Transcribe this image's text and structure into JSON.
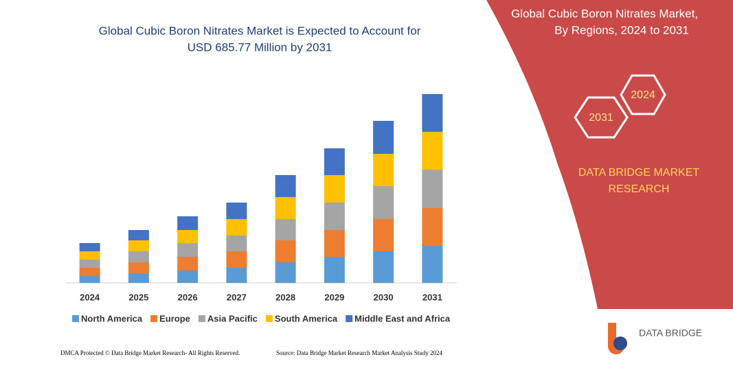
{
  "chart_data": {
    "type": "stacked-bar",
    "title": "Global Cubic Boron Nitrates Market is Expected to Account for",
    "subtitle": "USD 685.77 Million by 2031",
    "categories": [
      "2024",
      "2025",
      "2026",
      "2027",
      "2028",
      "2029",
      "2030",
      "2031"
    ],
    "series": [
      {
        "name": "North America",
        "color": "#5b9bd5",
        "values": [
          10,
          14,
          18,
          22,
          30,
          38,
          46,
          54
        ]
      },
      {
        "name": "Europe",
        "color": "#ed7d31",
        "values": [
          12,
          16,
          20,
          24,
          32,
          39,
          47,
          55
        ]
      },
      {
        "name": "Asia Pacific",
        "color": "#a5a5a5",
        "values": [
          12,
          16,
          20,
          23,
          31,
          40,
          48,
          56
        ]
      },
      {
        "name": "South America",
        "color": "#ffc000",
        "values": [
          12,
          16,
          19,
          24,
          32,
          40,
          47,
          55
        ]
      },
      {
        "name": "Middle East and Africa",
        "color": "#4472c4",
        "values": [
          12,
          15,
          20,
          24,
          32,
          39,
          48,
          55
        ]
      }
    ],
    "ylim": [
      0,
      290
    ],
    "legend": "bottom"
  },
  "panel": {
    "title_line1": "Global Cubic Boron Nitrates Market,",
    "title_line2": "By Regions, 2024 to 2031",
    "hex_start": "2024",
    "hex_end": "2031",
    "brand_line1": "DATA BRIDGE MARKET",
    "brand_line2": "RESEARCH",
    "logo": "DATA BRIDGE"
  },
  "footer": {
    "left": "DMCA Protected © Data Bridge Market Research-  All Rights Reserved.",
    "right": "Source: Data Bridge Market Research  Market Analysis Study 2024"
  }
}
